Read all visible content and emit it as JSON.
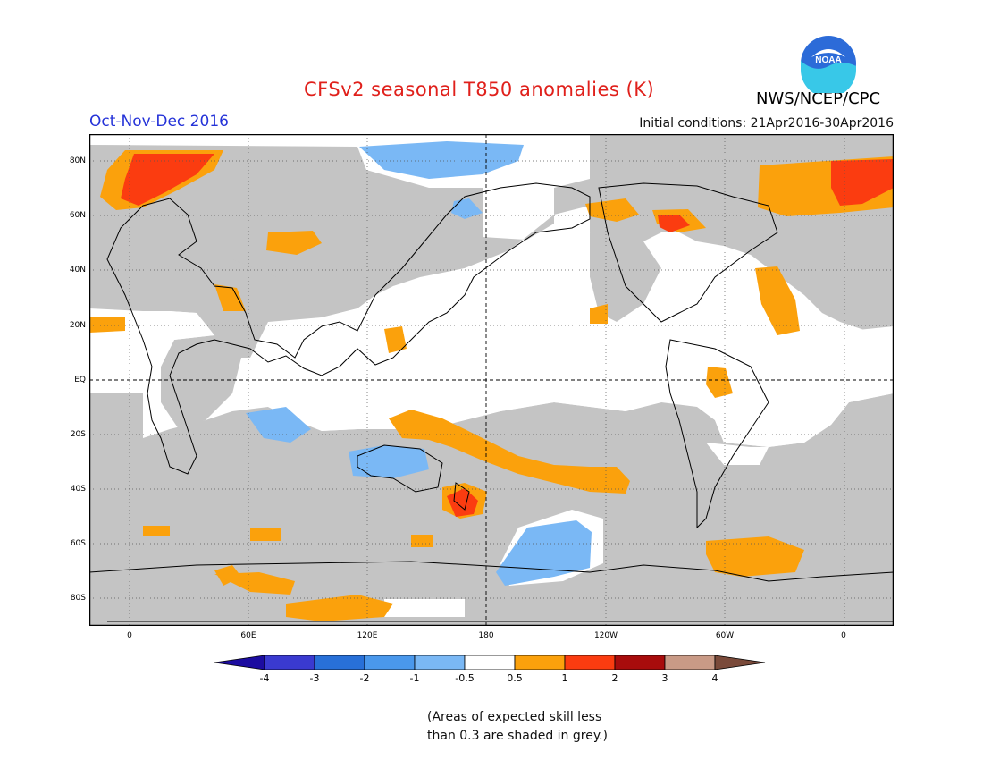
{
  "title": "CFSv2 seasonal T850 anomalies (K)",
  "season": "Oct-Nov-Dec 2016",
  "initial_conditions": "Initial conditions: 21Apr2016-30Apr2016",
  "organization": "NWS/NCEP/CPC",
  "logo_text": "NOAA",
  "lat_labels": [
    "80N",
    "60N",
    "40N",
    "20N",
    "EQ",
    "20S",
    "40S",
    "60S",
    "80S"
  ],
  "lon_labels": [
    "0",
    "60E",
    "120E",
    "180",
    "120W",
    "60W",
    "0"
  ],
  "colorbar": {
    "ticks": [
      "-4",
      "-3",
      "-2",
      "-1",
      "-0.5",
      "0.5",
      "1",
      "2",
      "3",
      "4"
    ],
    "colors": [
      "#1c0ca0",
      "#3a3ad0",
      "#2870d8",
      "#4a98ec",
      "#7ab8f5",
      "#ffffff",
      "#fba10c",
      "#fb3c10",
      "#a80c0c",
      "#c99a86",
      "#7a4a3a"
    ]
  },
  "note_line1": "(Areas of expected skill less",
  "note_line2": "than 0.3 are shaded in grey.)",
  "colors": {
    "skill_grey": "#c4c4c4",
    "positive_05_1": "#fba10c",
    "positive_1_2": "#fb3c10",
    "negative_05_1": "#7ab8f5"
  }
}
